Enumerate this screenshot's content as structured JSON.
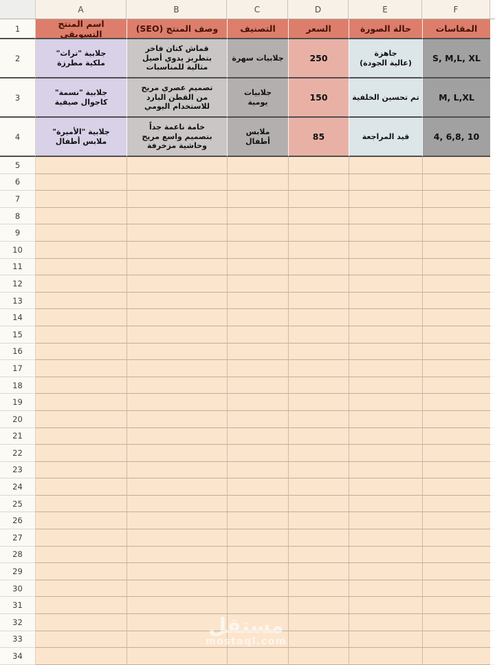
{
  "columns": [
    "A",
    "B",
    "C",
    "D",
    "E",
    "F"
  ],
  "row_numbers": [
    1,
    2,
    3,
    4,
    5,
    6,
    7,
    8,
    9,
    10,
    11,
    12,
    13,
    14,
    15,
    16,
    17,
    18,
    19,
    20,
    21,
    22,
    23,
    24,
    25,
    26,
    27,
    28,
    29,
    30,
    31,
    32,
    33,
    34
  ],
  "sheet": {
    "header_row": {
      "A": "اسم المنتج التسويقي",
      "B": "وصف المنتج (SEO)",
      "C": "التصنيف",
      "D": "السعر",
      "E": "حالة الصورة",
      "F": "المقاسات"
    },
    "data_rows": [
      {
        "row": 2,
        "A": "جلابية \"تراث\"\nملكية مطرزة",
        "B": "قماش كتان فاخر\nبتطريز يدوي أصيل\nمثالية للمناسبات",
        "C": "جلابيات سهرة",
        "D": "250",
        "E": "جاهزة\n(عالية الجودة)",
        "F": "S, M,L, XL"
      },
      {
        "row": 3,
        "A": "جلابية \"نسمة\"\nكاجوال صيفية",
        "B": "تصميم عصري مريح\nمن القطن البارد\nللاستخدام اليومي",
        "C": "جلابيات\nيومية",
        "D": "150",
        "E": "تم تحسين الخلفية",
        "F": "M, L,XL"
      },
      {
        "row": 4,
        "A": "جلابية \"الأميرة\"\nملابس أطفال",
        "B": "خامة ناعمة جداً\nبتصميم واسع مريح\nوحاشية مزخرفة",
        "C": "ملابس\nأطفال",
        "D": "85",
        "E": "قيد المراجعة",
        "F": "4, 6,8, 10"
      }
    ]
  },
  "colors": {
    "header_bg": "#dc7e6b",
    "header_text": "#4a1106",
    "fills": {
      "A": "#d8d1e8",
      "B": "#cac6c6",
      "C": "#b4afaf",
      "D": "#e9b1a6",
      "E": "#dce5e8",
      "F": "#a1a1a1"
    },
    "empty_fill": "#fce5cd"
  },
  "watermark": {
    "title": "مستقل",
    "subtitle": "mostaql.com"
  }
}
